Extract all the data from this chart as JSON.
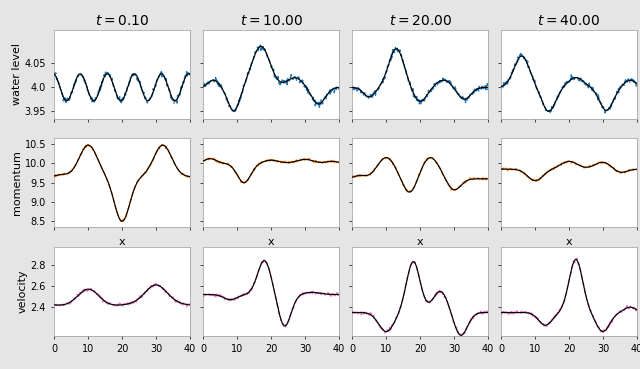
{
  "times": [
    0.1,
    10.0,
    20.0,
    40.0
  ],
  "colors": {
    "water": "#1f77b4",
    "momentum": "#ff7f0e",
    "velocity": "#e377c2",
    "truth": "#000000"
  },
  "row_labels": [
    "water level",
    "momentum",
    "velocity"
  ],
  "xlim": [
    0,
    40
  ],
  "x_ticks": [
    0,
    10,
    20,
    30,
    40
  ],
  "water_yticks": [
    3.95,
    4.0,
    4.05
  ],
  "mom_yticks": [
    8.5,
    9.0,
    9.5,
    10.0,
    10.5
  ],
  "vel_yticks": [
    2.4,
    2.6,
    2.8
  ],
  "water_ylim": [
    3.935,
    4.12
  ],
  "mom_ylim": [
    8.35,
    10.65
  ],
  "vel_ylim": [
    2.13,
    2.97
  ],
  "background_color": "#e5e5e5",
  "title_fontsize": 10,
  "label_fontsize": 8,
  "tick_fontsize": 7
}
